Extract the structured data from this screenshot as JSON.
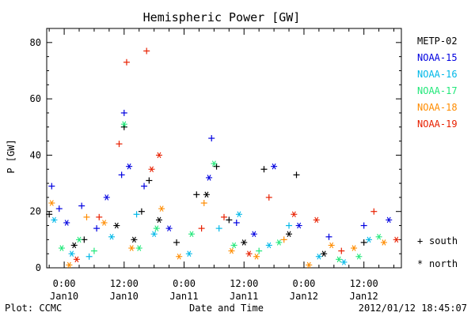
{
  "chart_data": {
    "type": "scatter",
    "title": "Hemispheric Power [GW]",
    "ylabel": "P [GW]",
    "xlabel": "Date and Time",
    "ylim": [
      0,
      85
    ],
    "xlim": [
      "2012-01-09T20:30",
      "2012-01-12T19:30"
    ],
    "y_ticks": [
      "0",
      "20",
      "40",
      "60",
      "80"
    ],
    "x_ticks": [
      {
        "time": "2012-01-10T00:00",
        "label": "0:00",
        "sublabel": "Jan10"
      },
      {
        "time": "2012-01-10T12:00",
        "label": "12:00",
        "sublabel": "Jan10"
      },
      {
        "time": "2012-01-11T00:00",
        "label": "0:00",
        "sublabel": "Jan11"
      },
      {
        "time": "2012-01-11T12:00",
        "label": "12:00",
        "sublabel": "Jan11"
      },
      {
        "time": "2012-01-12T00:00",
        "label": "0:00",
        "sublabel": "Jan12"
      },
      {
        "time": "2012-01-12T12:00",
        "label": "12:00",
        "sublabel": "Jan12"
      }
    ],
    "legend_position": "right",
    "marker_legend": [
      {
        "symbol": "+",
        "label": "south"
      },
      {
        "symbol": "*",
        "label": "north"
      }
    ],
    "series": [
      {
        "name": "METP-02",
        "color": "#000000",
        "points": [
          {
            "x": "2012-01-09T21:00",
            "y": 19,
            "m": "+"
          },
          {
            "x": "2012-01-10T02:00",
            "y": 8,
            "m": "*"
          },
          {
            "x": "2012-01-10T04:00",
            "y": 10,
            "m": "+"
          },
          {
            "x": "2012-01-10T10:30",
            "y": 15,
            "m": "*"
          },
          {
            "x": "2012-01-10T12:00",
            "y": 50,
            "m": "+"
          },
          {
            "x": "2012-01-10T14:00",
            "y": 10,
            "m": "*"
          },
          {
            "x": "2012-01-10T15:30",
            "y": 20,
            "m": "+"
          },
          {
            "x": "2012-01-10T17:00",
            "y": 31,
            "m": "+"
          },
          {
            "x": "2012-01-10T19:00",
            "y": 17,
            "m": "*"
          },
          {
            "x": "2012-01-10T22:30",
            "y": 9,
            "m": "+"
          },
          {
            "x": "2012-01-11T02:30",
            "y": 26,
            "m": "+"
          },
          {
            "x": "2012-01-11T04:30",
            "y": 26,
            "m": "*"
          },
          {
            "x": "2012-01-11T06:30",
            "y": 36,
            "m": "+"
          },
          {
            "x": "2012-01-11T09:00",
            "y": 17,
            "m": "+"
          },
          {
            "x": "2012-01-11T12:00",
            "y": 9,
            "m": "*"
          },
          {
            "x": "2012-01-11T16:00",
            "y": 35,
            "m": "+"
          },
          {
            "x": "2012-01-11T22:30",
            "y": 33,
            "m": "+"
          },
          {
            "x": "2012-01-11T21:00",
            "y": 12,
            "m": "*"
          },
          {
            "x": "2012-01-12T04:00",
            "y": 5,
            "m": "*"
          },
          {
            "x": "2012-01-12T12:00",
            "y": 9,
            "m": "+"
          }
        ]
      },
      {
        "name": "NOAA-15",
        "color": "#0000e0",
        "points": [
          {
            "x": "2012-01-09T21:30",
            "y": 29,
            "m": "+"
          },
          {
            "x": "2012-01-09T23:00",
            "y": 21,
            "m": "+"
          },
          {
            "x": "2012-01-10T00:30",
            "y": 16,
            "m": "*"
          },
          {
            "x": "2012-01-10T03:30",
            "y": 22,
            "m": "+"
          },
          {
            "x": "2012-01-10T06:30",
            "y": 14,
            "m": "+"
          },
          {
            "x": "2012-01-10T08:30",
            "y": 25,
            "m": "*"
          },
          {
            "x": "2012-01-10T11:30",
            "y": 33,
            "m": "+"
          },
          {
            "x": "2012-01-10T12:00",
            "y": 55,
            "m": "+"
          },
          {
            "x": "2012-01-10T13:00",
            "y": 36,
            "m": "*"
          },
          {
            "x": "2012-01-10T16:00",
            "y": 29,
            "m": "+"
          },
          {
            "x": "2012-01-10T21:00",
            "y": 14,
            "m": "*"
          },
          {
            "x": "2012-01-11T05:00",
            "y": 32,
            "m": "*"
          },
          {
            "x": "2012-01-11T05:30",
            "y": 46,
            "m": "+"
          },
          {
            "x": "2012-01-11T10:30",
            "y": 16,
            "m": "+"
          },
          {
            "x": "2012-01-11T14:00",
            "y": 12,
            "m": "*"
          },
          {
            "x": "2012-01-11T18:00",
            "y": 36,
            "m": "*"
          },
          {
            "x": "2012-01-11T23:00",
            "y": 15,
            "m": "*"
          },
          {
            "x": "2012-01-12T05:00",
            "y": 11,
            "m": "+"
          },
          {
            "x": "2012-01-12T12:00",
            "y": 15,
            "m": "+"
          },
          {
            "x": "2012-01-12T17:00",
            "y": 17,
            "m": "*"
          }
        ]
      },
      {
        "name": "NOAA-16",
        "color": "#00b8e8",
        "points": [
          {
            "x": "2012-01-09T22:00",
            "y": 17,
            "m": "*"
          },
          {
            "x": "2012-01-10T01:30",
            "y": 5,
            "m": "*"
          },
          {
            "x": "2012-01-10T05:00",
            "y": 4,
            "m": "+"
          },
          {
            "x": "2012-01-10T09:30",
            "y": 11,
            "m": "*"
          },
          {
            "x": "2012-01-10T14:30",
            "y": 19,
            "m": "+"
          },
          {
            "x": "2012-01-10T18:00",
            "y": 12,
            "m": "*"
          },
          {
            "x": "2012-01-11T01:00",
            "y": 5,
            "m": "*"
          },
          {
            "x": "2012-01-11T07:00",
            "y": 14,
            "m": "+"
          },
          {
            "x": "2012-01-11T11:00",
            "y": 19,
            "m": "*"
          },
          {
            "x": "2012-01-11T17:00",
            "y": 8,
            "m": "*"
          },
          {
            "x": "2012-01-11T21:00",
            "y": 15,
            "m": "+"
          },
          {
            "x": "2012-01-12T03:00",
            "y": 4,
            "m": "*"
          },
          {
            "x": "2012-01-12T08:00",
            "y": 2,
            "m": "*"
          },
          {
            "x": "2012-01-12T13:00",
            "y": 10,
            "m": "*"
          }
        ]
      },
      {
        "name": "NOAA-17",
        "color": "#22e87a",
        "points": [
          {
            "x": "2012-01-09T23:30",
            "y": 7,
            "m": "*"
          },
          {
            "x": "2012-01-10T03:00",
            "y": 10,
            "m": "*"
          },
          {
            "x": "2012-01-10T06:00",
            "y": 6,
            "m": "+"
          },
          {
            "x": "2012-01-10T12:00",
            "y": 51,
            "m": "*"
          },
          {
            "x": "2012-01-10T15:00",
            "y": 7,
            "m": "*"
          },
          {
            "x": "2012-01-10T18:30",
            "y": 14,
            "m": "*"
          },
          {
            "x": "2012-01-11T01:30",
            "y": 12,
            "m": "*"
          },
          {
            "x": "2012-01-11T06:00",
            "y": 37,
            "m": "*"
          },
          {
            "x": "2012-01-11T10:00",
            "y": 8,
            "m": "*"
          },
          {
            "x": "2012-01-11T15:00",
            "y": 6,
            "m": "+"
          },
          {
            "x": "2012-01-11T19:00",
            "y": 9,
            "m": "*"
          },
          {
            "x": "2012-01-12T07:00",
            "y": 3,
            "m": "*"
          },
          {
            "x": "2012-01-12T11:00",
            "y": 4,
            "m": "*"
          },
          {
            "x": "2012-01-12T15:00",
            "y": 11,
            "m": "*"
          }
        ]
      },
      {
        "name": "NOAA-18",
        "color": "#ff8c00",
        "points": [
          {
            "x": "2012-01-09T21:30",
            "y": 23,
            "m": "*"
          },
          {
            "x": "2012-01-10T01:00",
            "y": 1,
            "m": "*"
          },
          {
            "x": "2012-01-10T04:30",
            "y": 18,
            "m": "+"
          },
          {
            "x": "2012-01-10T08:00",
            "y": 16,
            "m": "*"
          },
          {
            "x": "2012-01-10T13:30",
            "y": 7,
            "m": "*"
          },
          {
            "x": "2012-01-10T19:30",
            "y": 21,
            "m": "*"
          },
          {
            "x": "2012-01-10T23:00",
            "y": 4,
            "m": "*"
          },
          {
            "x": "2012-01-11T04:00",
            "y": 23,
            "m": "+"
          },
          {
            "x": "2012-01-11T09:30",
            "y": 6,
            "m": "*"
          },
          {
            "x": "2012-01-11T14:30",
            "y": 4,
            "m": "*"
          },
          {
            "x": "2012-01-11T20:00",
            "y": 10,
            "m": "+"
          },
          {
            "x": "2012-01-12T01:00",
            "y": 1,
            "m": "*"
          },
          {
            "x": "2012-01-12T05:30",
            "y": 8,
            "m": "*"
          },
          {
            "x": "2012-01-12T10:00",
            "y": 7,
            "m": "*"
          },
          {
            "x": "2012-01-12T16:00",
            "y": 9,
            "m": "*"
          }
        ]
      },
      {
        "name": "NOAA-19",
        "color": "#e82000",
        "points": [
          {
            "x": "2012-01-10T02:30",
            "y": 3,
            "m": "*"
          },
          {
            "x": "2012-01-10T07:00",
            "y": 18,
            "m": "+"
          },
          {
            "x": "2012-01-10T11:00",
            "y": 44,
            "m": "+"
          },
          {
            "x": "2012-01-10T12:30",
            "y": 73,
            "m": "+"
          },
          {
            "x": "2012-01-10T16:30",
            "y": 77,
            "m": "+"
          },
          {
            "x": "2012-01-10T17:30",
            "y": 35,
            "m": "*"
          },
          {
            "x": "2012-01-10T19:00",
            "y": 40,
            "m": "*"
          },
          {
            "x": "2012-01-11T03:30",
            "y": 14,
            "m": "+"
          },
          {
            "x": "2012-01-11T08:00",
            "y": 18,
            "m": "+"
          },
          {
            "x": "2012-01-11T13:00",
            "y": 5,
            "m": "*"
          },
          {
            "x": "2012-01-11T17:00",
            "y": 25,
            "m": "+"
          },
          {
            "x": "2012-01-11T22:00",
            "y": 19,
            "m": "*"
          },
          {
            "x": "2012-01-12T02:30",
            "y": 17,
            "m": "*"
          },
          {
            "x": "2012-01-12T07:30",
            "y": 6,
            "m": "+"
          },
          {
            "x": "2012-01-12T14:00",
            "y": 20,
            "m": "+"
          },
          {
            "x": "2012-01-12T18:30",
            "y": 10,
            "m": "*"
          }
        ]
      }
    ]
  },
  "footer": {
    "plot_credit": "Plot: CCMC",
    "timestamp": "2012/01/12 18:45:07"
  }
}
